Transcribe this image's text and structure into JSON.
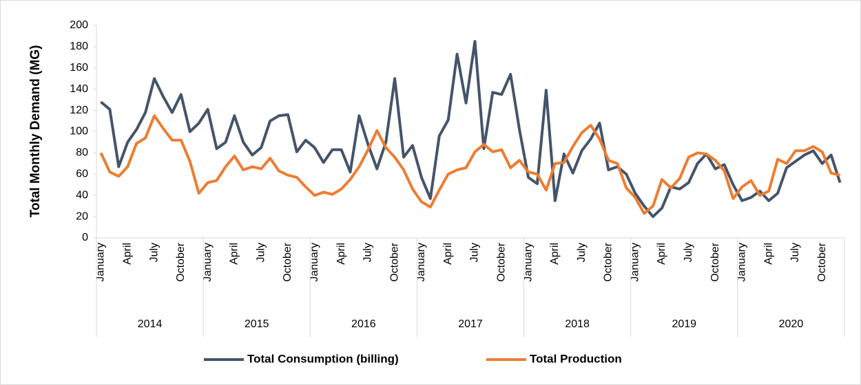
{
  "chart_data": {
    "type": "line",
    "ylabel": "Total Monthly Demand (MG)",
    "categories": [
      "January",
      null,
      null,
      "April",
      null,
      null,
      "July",
      null,
      null,
      "October",
      null,
      null,
      "January",
      null,
      null,
      "April",
      null,
      null,
      "July",
      null,
      null,
      "October",
      null,
      null,
      "January",
      null,
      null,
      "April",
      null,
      null,
      "July",
      null,
      null,
      "October",
      null,
      null,
      "January",
      null,
      null,
      "April",
      null,
      null,
      "July",
      null,
      null,
      "October",
      null,
      null,
      "January",
      null,
      null,
      "April",
      null,
      null,
      "July",
      null,
      null,
      "October",
      null,
      null,
      "January",
      null,
      null,
      "April",
      null,
      null,
      "July",
      null,
      null,
      "October",
      null,
      null,
      "January",
      null,
      null,
      "April",
      null,
      null,
      "July",
      null,
      null,
      "October",
      null,
      null
    ],
    "groups": [
      "2014",
      "2015",
      "2016",
      "2017",
      "2018",
      "2019",
      "2020"
    ],
    "series": [
      {
        "name": "Total Consumption (billing)",
        "color": "#44546a",
        "values": [
          128,
          121,
          67,
          90,
          102,
          118,
          150,
          133,
          118,
          135,
          100,
          108,
          121,
          84,
          90,
          115,
          90,
          78,
          85,
          110,
          115,
          116,
          81,
          92,
          85,
          71,
          83,
          83,
          62,
          115,
          88,
          65,
          90,
          150,
          76,
          87,
          57,
          37,
          96,
          111,
          173,
          127,
          185,
          84,
          137,
          135,
          154,
          102,
          57,
          51,
          139,
          35,
          79,
          61,
          82,
          93,
          108,
          64,
          67,
          60,
          42,
          30,
          20,
          28,
          48,
          46,
          52,
          70,
          79,
          65,
          69,
          50,
          35,
          38,
          44,
          35,
          42,
          66,
          72,
          78,
          82,
          70,
          78,
          52
        ]
      },
      {
        "name": "Total Production",
        "color": "#ed7d31",
        "values": [
          80,
          62,
          58,
          67,
          89,
          94,
          115,
          103,
          92,
          92,
          72,
          42,
          52,
          54,
          67,
          77,
          64,
          67,
          65,
          75,
          63,
          59,
          57,
          48,
          40,
          43,
          41,
          46,
          55,
          67,
          83,
          101,
          85,
          76,
          64,
          46,
          34,
          29,
          45,
          60,
          64,
          66,
          81,
          88,
          81,
          83,
          66,
          73,
          62,
          60,
          45,
          70,
          71,
          86,
          99,
          106,
          93,
          73,
          70,
          47,
          38,
          23,
          30,
          55,
          47,
          56,
          76,
          80,
          79,
          73,
          63,
          37,
          48,
          54,
          40,
          44,
          74,
          70,
          82,
          82,
          86,
          81,
          61,
          59
        ]
      }
    ],
    "ylim": [
      0,
      200
    ],
    "yticks": [
      0,
      20,
      40,
      60,
      80,
      100,
      120,
      140,
      160,
      180,
      200
    ],
    "grid": false,
    "legend": "bottom"
  }
}
